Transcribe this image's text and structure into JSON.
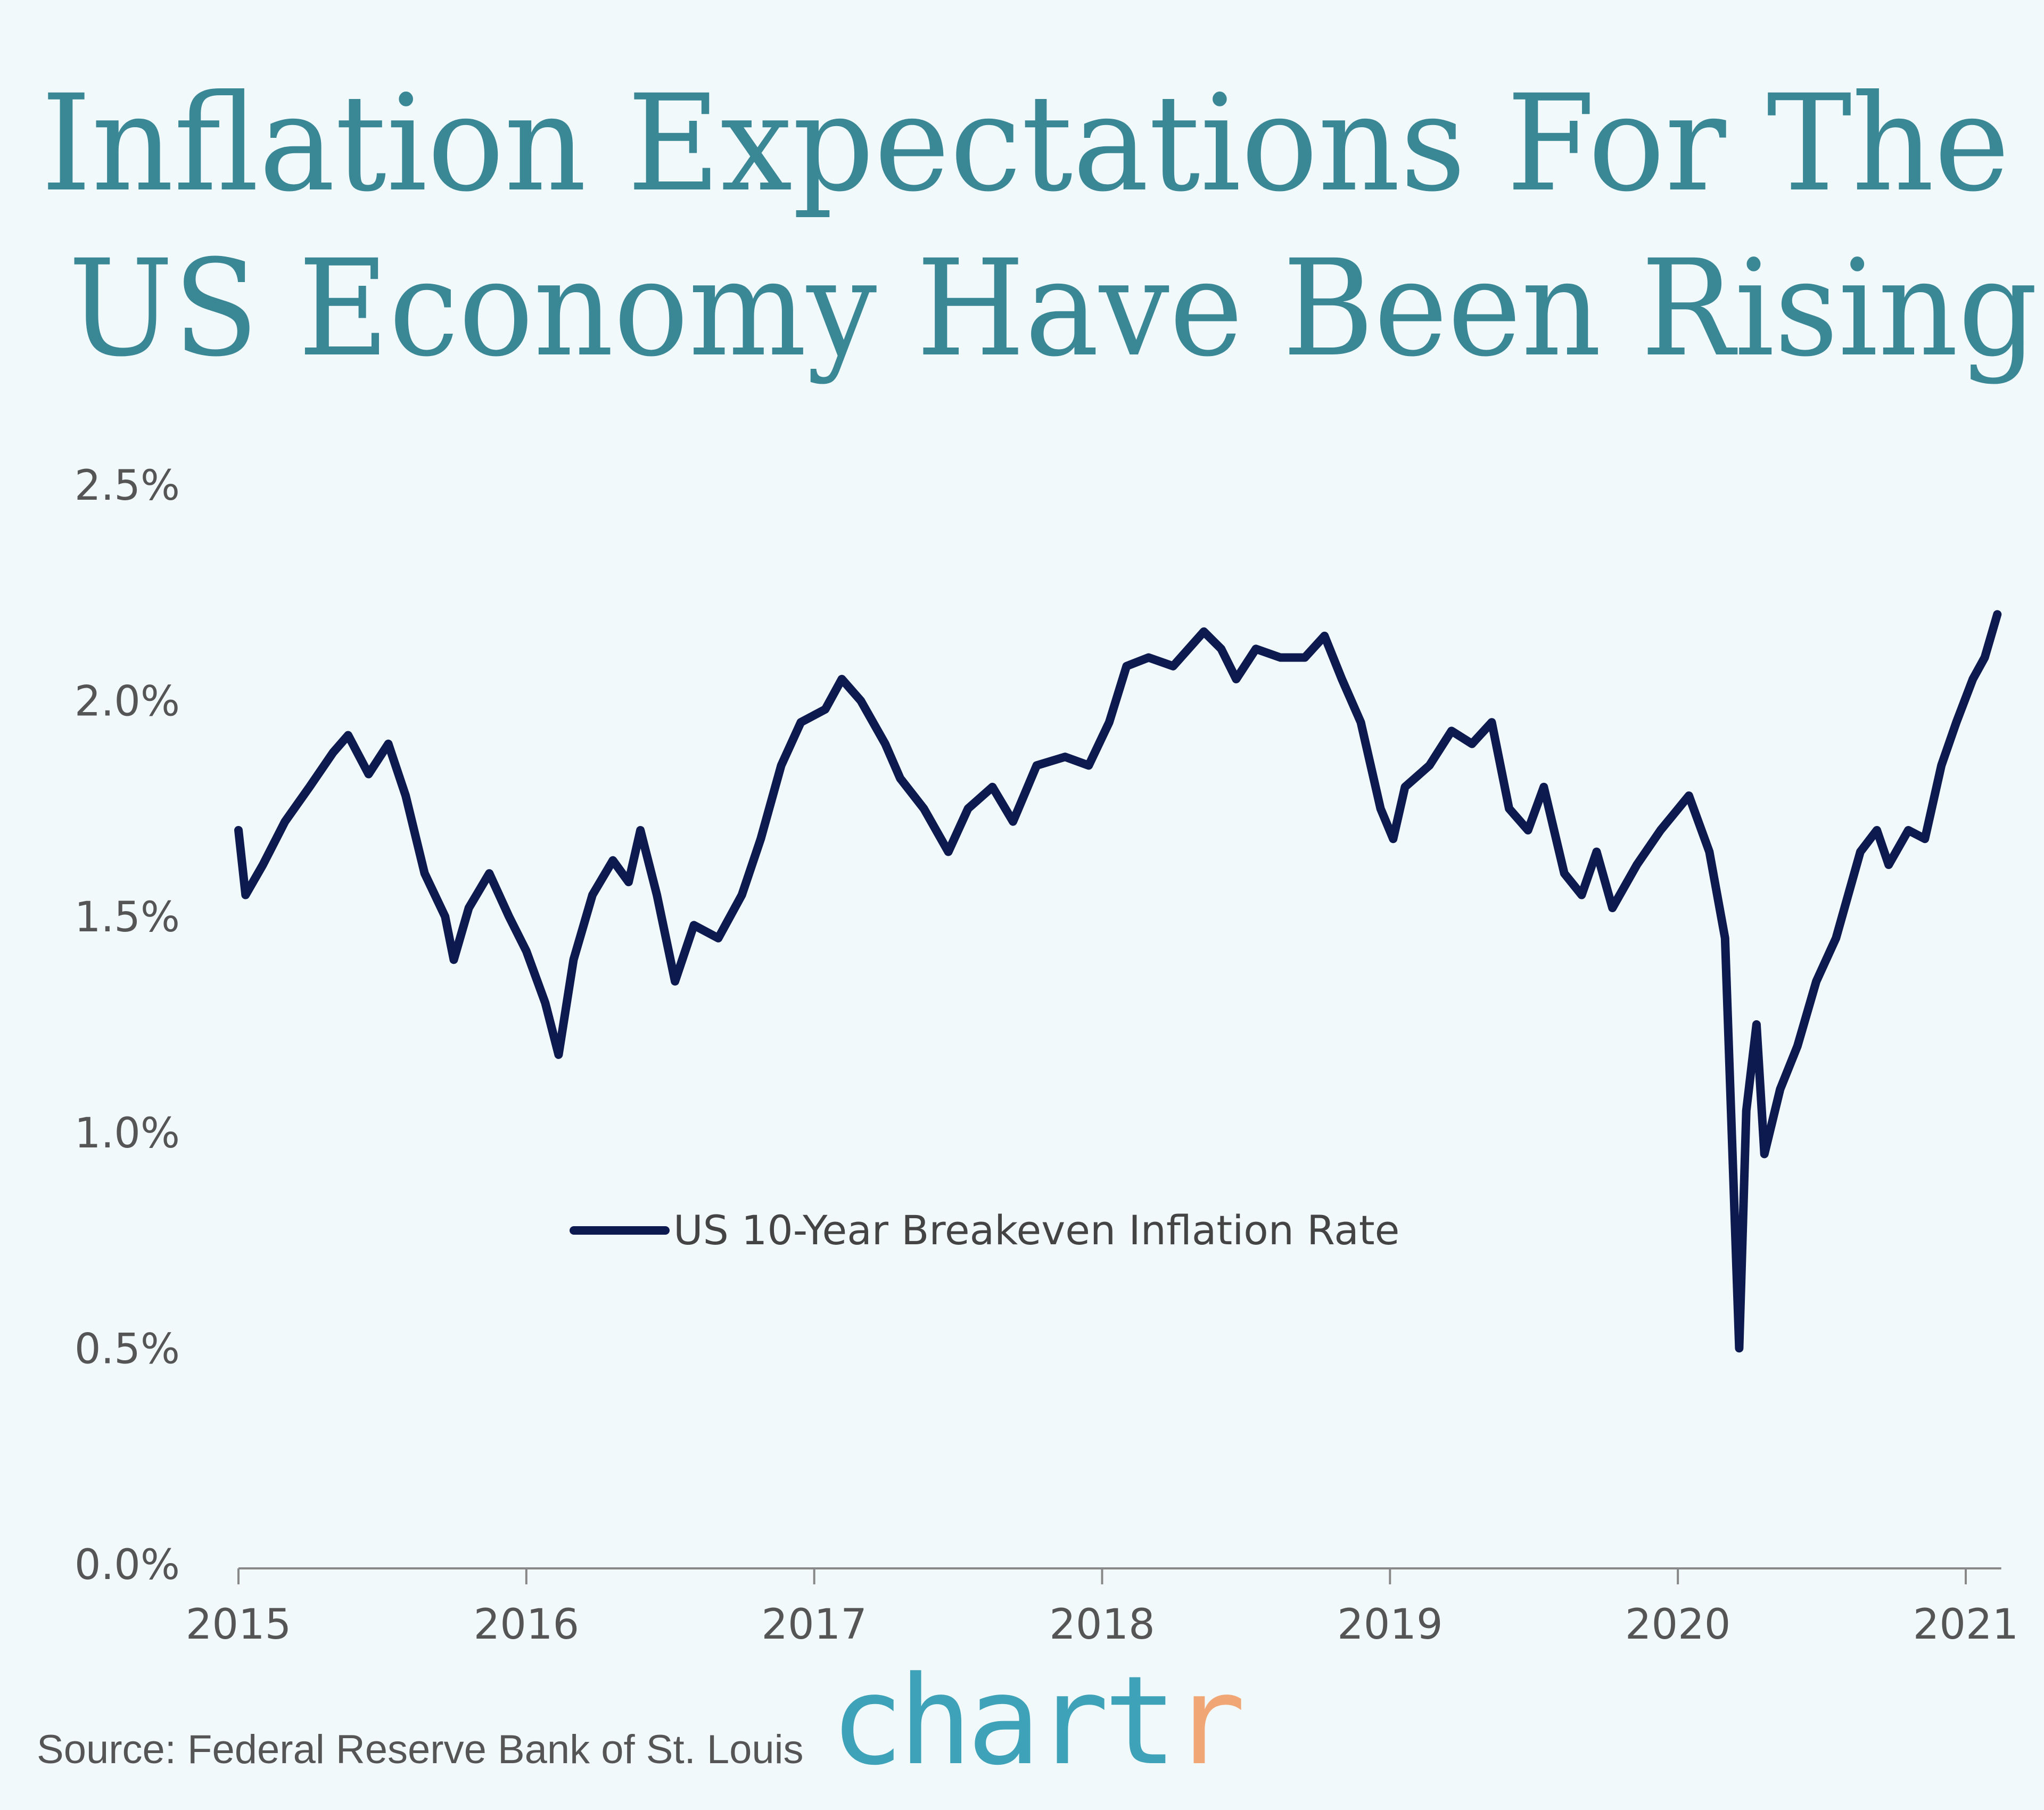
{
  "chart_data": {
    "type": "line",
    "title": "Inflation Expectations For The US Economy Have Been Rising",
    "title_lines": [
      "Inflation Expectations For The",
      "US Economy Have Been Rising"
    ],
    "xlabel": "",
    "ylabel": "",
    "x_ticks": [
      "2015",
      "2016",
      "2017",
      "2018",
      "2019",
      "2020",
      "2021"
    ],
    "y_ticks": [
      "0.0%",
      "0.5%",
      "1.0%",
      "1.5%",
      "2.0%",
      "2.5%"
    ],
    "ylim": [
      0,
      2.5
    ],
    "xlim": [
      "2015-01-01",
      "2021-02-15"
    ],
    "grid": false,
    "legend_position": "center-left",
    "series": [
      {
        "name": "US 10-Year Breakeven Inflation Rate",
        "color": "#0d1a4f",
        "points": [
          [
            "2015-01-01",
            1.7
          ],
          [
            "2015-01-10",
            1.55
          ],
          [
            "2015-02-01",
            1.62
          ],
          [
            "2015-03-01",
            1.72
          ],
          [
            "2015-04-01",
            1.8
          ],
          [
            "2015-05-01",
            1.88
          ],
          [
            "2015-05-20",
            1.92
          ],
          [
            "2015-06-15",
            1.83
          ],
          [
            "2015-07-10",
            1.9
          ],
          [
            "2015-08-01",
            1.78
          ],
          [
            "2015-08-25",
            1.6
          ],
          [
            "2015-09-20",
            1.5
          ],
          [
            "2015-10-01",
            1.4
          ],
          [
            "2015-10-20",
            1.52
          ],
          [
            "2015-11-15",
            1.6
          ],
          [
            "2015-12-10",
            1.5
          ],
          [
            "2016-01-01",
            1.42
          ],
          [
            "2016-01-25",
            1.3
          ],
          [
            "2016-02-11",
            1.18
          ],
          [
            "2016-03-01",
            1.4
          ],
          [
            "2016-03-25",
            1.55
          ],
          [
            "2016-04-20",
            1.63
          ],
          [
            "2016-05-10",
            1.58
          ],
          [
            "2016-05-25",
            1.7
          ],
          [
            "2016-06-15",
            1.55
          ],
          [
            "2016-07-08",
            1.35
          ],
          [
            "2016-08-01",
            1.48
          ],
          [
            "2016-09-01",
            1.45
          ],
          [
            "2016-10-01",
            1.55
          ],
          [
            "2016-10-25",
            1.68
          ],
          [
            "2016-11-20",
            1.85
          ],
          [
            "2016-12-15",
            1.95
          ],
          [
            "2017-01-15",
            1.98
          ],
          [
            "2017-02-05",
            2.05
          ],
          [
            "2017-03-01",
            2.0
          ],
          [
            "2017-04-01",
            1.9
          ],
          [
            "2017-04-20",
            1.82
          ],
          [
            "2017-05-20",
            1.75
          ],
          [
            "2017-06-20",
            1.65
          ],
          [
            "2017-07-15",
            1.75
          ],
          [
            "2017-08-15",
            1.8
          ],
          [
            "2017-09-10",
            1.72
          ],
          [
            "2017-10-10",
            1.85
          ],
          [
            "2017-11-15",
            1.87
          ],
          [
            "2017-12-15",
            1.85
          ],
          [
            "2018-01-10",
            1.95
          ],
          [
            "2018-02-01",
            2.08
          ],
          [
            "2018-03-01",
            2.1
          ],
          [
            "2018-04-01",
            2.08
          ],
          [
            "2018-05-10",
            2.16
          ],
          [
            "2018-06-01",
            2.12
          ],
          [
            "2018-06-20",
            2.05
          ],
          [
            "2018-07-15",
            2.12
          ],
          [
            "2018-08-15",
            2.1
          ],
          [
            "2018-09-15",
            2.1
          ],
          [
            "2018-10-10",
            2.15
          ],
          [
            "2018-11-01",
            2.05
          ],
          [
            "2018-11-25",
            1.95
          ],
          [
            "2018-12-20",
            1.75
          ],
          [
            "2019-01-05",
            1.68
          ],
          [
            "2019-01-20",
            1.8
          ],
          [
            "2019-02-20",
            1.85
          ],
          [
            "2019-03-20",
            1.93
          ],
          [
            "2019-04-15",
            1.9
          ],
          [
            "2019-05-10",
            1.95
          ],
          [
            "2019-06-01",
            1.75
          ],
          [
            "2019-06-25",
            1.7
          ],
          [
            "2019-07-15",
            1.8
          ],
          [
            "2019-08-10",
            1.6
          ],
          [
            "2019-09-01",
            1.55
          ],
          [
            "2019-09-20",
            1.65
          ],
          [
            "2019-10-10",
            1.52
          ],
          [
            "2019-11-10",
            1.62
          ],
          [
            "2019-12-10",
            1.7
          ],
          [
            "2020-01-15",
            1.78
          ],
          [
            "2020-02-10",
            1.65
          ],
          [
            "2020-03-01",
            1.45
          ],
          [
            "2020-03-19",
            0.5
          ],
          [
            "2020-03-28",
            1.05
          ],
          [
            "2020-04-10",
            1.25
          ],
          [
            "2020-04-20",
            0.95
          ],
          [
            "2020-05-10",
            1.1
          ],
          [
            "2020-06-01",
            1.2
          ],
          [
            "2020-06-25",
            1.35
          ],
          [
            "2020-07-20",
            1.45
          ],
          [
            "2020-08-20",
            1.65
          ],
          [
            "2020-09-10",
            1.7
          ],
          [
            "2020-09-25",
            1.62
          ],
          [
            "2020-10-20",
            1.7
          ],
          [
            "2020-11-10",
            1.68
          ],
          [
            "2020-12-01",
            1.85
          ],
          [
            "2020-12-20",
            1.95
          ],
          [
            "2021-01-10",
            2.05
          ],
          [
            "2021-01-25",
            2.1
          ],
          [
            "2021-02-10",
            2.2
          ]
        ]
      }
    ]
  },
  "footer": {
    "source": "Source: Federal Reserve Bank of St. Louis",
    "logo_main": "chart",
    "logo_accent": "r",
    "logo_colors": {
      "main": "#3ea2b9",
      "accent": "#f0a775"
    }
  },
  "colors": {
    "background": "#f1f9fb",
    "title": "#3a8796",
    "axis": "#888888"
  }
}
